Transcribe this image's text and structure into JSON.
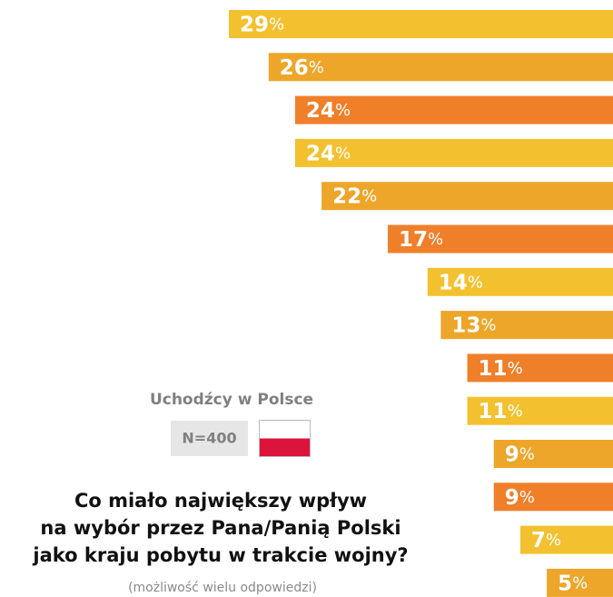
{
  "chart_data": {
    "type": "bar",
    "orientation": "horizontal",
    "title": "Co miało największy wpływ",
    "title_lines": [
      "Co miało największy wpływ",
      "na wybór przez Pana/Panią Polski",
      "jako kraju pobytu w trakcie wojny?"
    ],
    "subtitle": "(możliwość wielu odpowiedzi)",
    "group": "Uchodźcy w Polsce",
    "sample": "N=400",
    "unit": "%",
    "values": [
      29,
      26,
      24,
      24,
      22,
      17,
      14,
      13,
      11,
      11,
      9,
      9,
      7,
      5
    ],
    "colors": [
      "#f3c12f",
      "#eda62a",
      "#f07f2a",
      "#f3c12f",
      "#eda62a",
      "#f07f2a",
      "#f3c12f",
      "#eda62a",
      "#f07f2a",
      "#f3c12f",
      "#eda62a",
      "#f07f2a",
      "#f3c12f",
      "#eda62a"
    ],
    "xlim": [
      0,
      29
    ]
  }
}
